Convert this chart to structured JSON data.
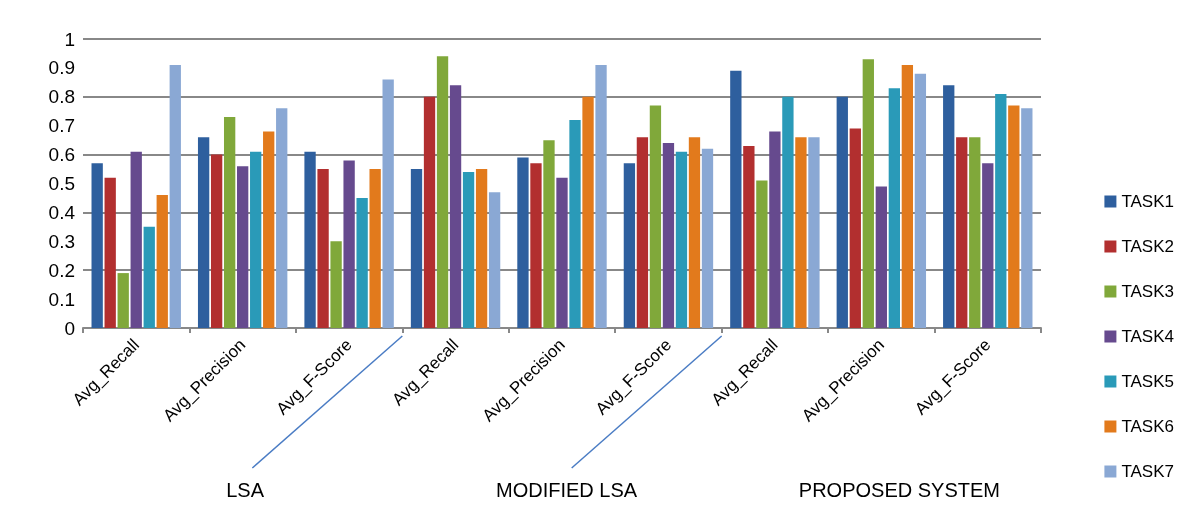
{
  "chart_data": {
    "type": "bar",
    "categories": [
      "Avg_Recall",
      "Avg_Precision",
      "Avg_F-Score",
      "Avg_Recall",
      "Avg_Precision",
      "Avg_F-Score",
      "Avg_Recall",
      "Avg_Precision",
      "Avg_F-Score"
    ],
    "series": [
      {
        "name": "TASK1",
        "color": "#2e5f9e",
        "values": [
          0.57,
          0.66,
          0.61,
          0.55,
          0.59,
          0.57,
          0.89,
          0.8,
          0.84
        ]
      },
      {
        "name": "TASK2",
        "color": "#b22f2f",
        "values": [
          0.52,
          0.6,
          0.55,
          0.8,
          0.57,
          0.66,
          0.63,
          0.69,
          0.66
        ]
      },
      {
        "name": "TASK3",
        "color": "#80a83a",
        "values": [
          0.19,
          0.73,
          0.3,
          0.94,
          0.65,
          0.77,
          0.51,
          0.93,
          0.66
        ]
      },
      {
        "name": "TASK4",
        "color": "#664a8e",
        "values": [
          0.61,
          0.56,
          0.58,
          0.84,
          0.52,
          0.64,
          0.68,
          0.49,
          0.57
        ]
      },
      {
        "name": "TASK5",
        "color": "#2a9ab8",
        "values": [
          0.35,
          0.61,
          0.45,
          0.54,
          0.72,
          0.61,
          0.8,
          0.83,
          0.81
        ]
      },
      {
        "name": "TASK6",
        "color": "#e27a1c",
        "values": [
          0.46,
          0.68,
          0.55,
          0.55,
          0.8,
          0.66,
          0.66,
          0.91,
          0.77
        ]
      },
      {
        "name": "TASK7",
        "color": "#8aa8d4",
        "values": [
          0.91,
          0.76,
          0.86,
          0.47,
          0.91,
          0.62,
          0.66,
          0.88,
          0.76
        ]
      }
    ],
    "annotations": [
      "LSA",
      "MODIFIED LSA",
      "PROPOSED SYSTEM"
    ],
    "ylim": [
      0,
      1
    ],
    "yticks": [
      0,
      0.1,
      0.2,
      0.3,
      0.4,
      0.5,
      0.6,
      0.7,
      0.8,
      0.9,
      1
    ],
    "grid": "y",
    "legend": "right"
  }
}
